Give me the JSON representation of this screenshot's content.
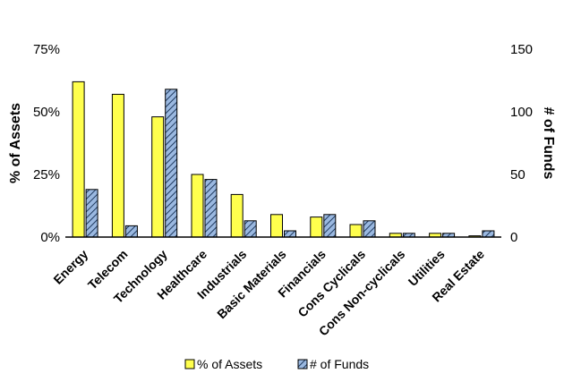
{
  "chart_data": {
    "type": "bar",
    "title": "",
    "categories": [
      "Energy",
      "Telecom",
      "Technology",
      "Healthcare",
      "Industrials",
      "Basic Materials",
      "Financials",
      "Cons Cyclicals",
      "Cons Non-cyclicals",
      "Utilities",
      "Real Estate"
    ],
    "series": [
      {
        "name": "% of Assets",
        "axis": "left",
        "unit": "%",
        "values": [
          62,
          57,
          48,
          25,
          17,
          9,
          8,
          5,
          1.5,
          1.5,
          0.5
        ],
        "color": "#ffff4d"
      },
      {
        "name": "# of Funds",
        "axis": "right",
        "values": [
          38,
          9,
          118,
          46,
          13,
          5,
          18,
          13,
          3,
          3,
          5
        ],
        "color": "#8faadc",
        "pattern": "diagonal-hatch"
      }
    ],
    "left_axis": {
      "label": "% of Assets",
      "range": [
        0,
        75
      ],
      "ticks": [
        "0%",
        "25%",
        "50%",
        "75%"
      ]
    },
    "right_axis": {
      "label": "# of Funds",
      "range": [
        0,
        150
      ],
      "ticks": [
        "0",
        "50",
        "100",
        "150"
      ]
    },
    "grid": false,
    "legend_position": "bottom"
  }
}
